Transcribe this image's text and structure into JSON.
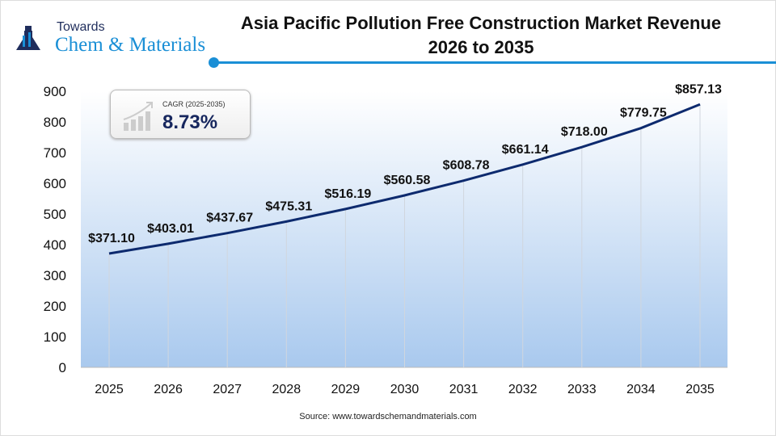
{
  "logo": {
    "line1": "Towards",
    "line2": "Chem & Materials"
  },
  "title_line1": "Asia Pacific Pollution Free Construction Market Revenue",
  "title_line2": "2026 to 2035",
  "cagr": {
    "label": "CAGR (2025-2035)",
    "value": "8.73%"
  },
  "source": "Source: www.towardschemandmaterials.com",
  "colors": {
    "line": "#0d2a6e",
    "accent": "#1a8fd6",
    "area_bottom": "#a9c9ee"
  },
  "chart_data": {
    "type": "area",
    "categories": [
      "2025",
      "2026",
      "2027",
      "2028",
      "2029",
      "2030",
      "2031",
      "2032",
      "2033",
      "2034",
      "2035"
    ],
    "values": [
      371.1,
      403.01,
      437.67,
      475.31,
      516.19,
      560.58,
      608.78,
      661.14,
      718.0,
      779.75,
      857.13
    ],
    "labels": [
      "$371.10",
      "$403.01",
      "$437.67",
      "$475.31",
      "$516.19",
      "$560.58",
      "$608.78",
      "$661.14",
      "$718.00",
      "$779.75",
      "$857.13"
    ],
    "ylim": [
      0,
      900
    ],
    "yticks": [
      0,
      100,
      200,
      300,
      400,
      500,
      600,
      700,
      800,
      900
    ],
    "grid": "vertical"
  }
}
